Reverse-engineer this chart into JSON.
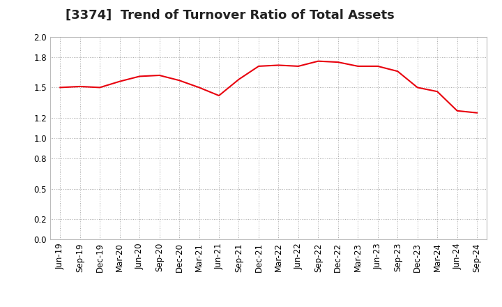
{
  "title": "[3374]  Trend of Turnover Ratio of Total Assets",
  "x_labels": [
    "Jun-19",
    "Sep-19",
    "Dec-19",
    "Mar-20",
    "Jun-20",
    "Sep-20",
    "Dec-20",
    "Mar-21",
    "Jun-21",
    "Sep-21",
    "Dec-21",
    "Mar-22",
    "Jun-22",
    "Sep-22",
    "Dec-22",
    "Mar-23",
    "Jun-23",
    "Sep-23",
    "Dec-23",
    "Mar-24",
    "Jun-24",
    "Sep-24"
  ],
  "y_values": [
    1.5,
    1.51,
    1.5,
    1.56,
    1.61,
    1.62,
    1.57,
    1.5,
    1.42,
    1.58,
    1.71,
    1.72,
    1.71,
    1.76,
    1.75,
    1.71,
    1.71,
    1.66,
    1.5,
    1.46,
    1.27,
    1.25
  ],
  "ylim": [
    0.0,
    2.0
  ],
  "yticks": [
    0.0,
    0.2,
    0.5,
    0.8,
    1.0,
    1.2,
    1.5,
    1.8,
    2.0
  ],
  "line_color": "#e8000d",
  "line_width": 1.5,
  "background_color": "#ffffff",
  "plot_bg_color": "#ffffff",
  "grid_color": "#aaaaaa",
  "title_fontsize": 13,
  "tick_fontsize": 8.5
}
